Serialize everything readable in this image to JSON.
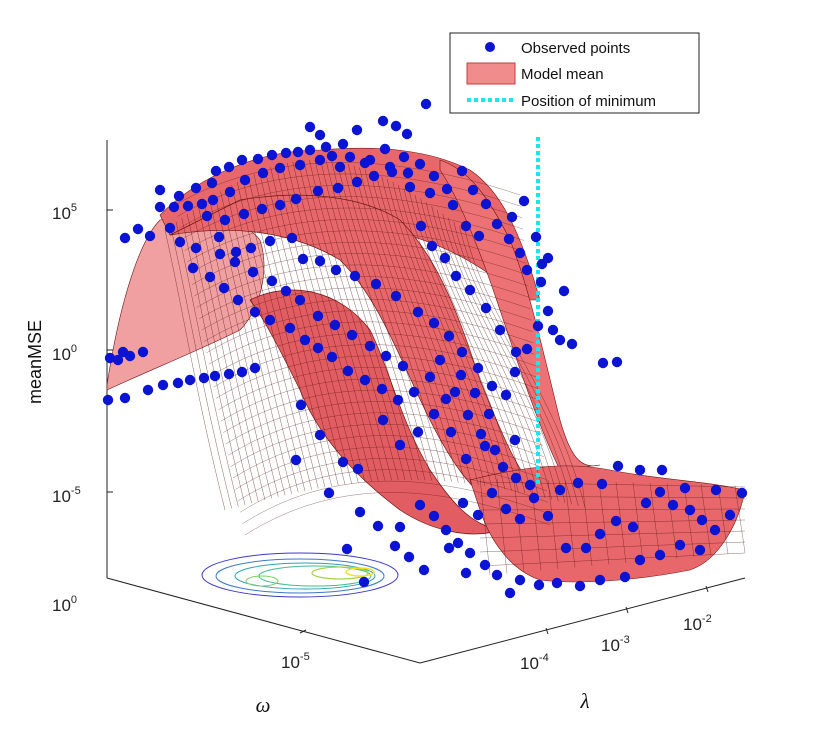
{
  "chart_data": {
    "type": "surface3d",
    "axes": {
      "z": {
        "label": "meanMSE",
        "scale": "log",
        "ticks": [
          {
            "base": "10",
            "exp": "5"
          },
          {
            "base": "10",
            "exp": "0"
          },
          {
            "base": "10",
            "exp": "-5"
          },
          {
            "base": "10",
            "exp": "0"
          }
        ]
      },
      "omega": {
        "label": "ω",
        "scale": "log",
        "ticks": [
          {
            "base": "10",
            "exp": "-5"
          }
        ]
      },
      "lambda": {
        "label": "λ",
        "scale": "log",
        "ticks": [
          {
            "base": "10",
            "exp": "-4"
          },
          {
            "base": "10",
            "exp": "-3"
          },
          {
            "base": "10",
            "exp": "-2"
          }
        ]
      }
    },
    "legend": {
      "position": "top-right",
      "entries": [
        {
          "label": "Observed points",
          "kind": "marker",
          "color": "#0a14d2"
        },
        {
          "label": "Model mean",
          "kind": "patch",
          "color": "#f08c8c"
        },
        {
          "label": "Position of minimum",
          "kind": "dotted-line",
          "color": "#19e6ee"
        }
      ]
    },
    "series": [
      {
        "name": "Observed points",
        "color": "#0a14d2"
      },
      {
        "name": "Model mean",
        "color": "#e8555a"
      },
      {
        "name": "Position of minimum",
        "color": "#19e6ee"
      }
    ],
    "minimum_position": {
      "lambda_exp": -1.8
    },
    "observed_points_note_count": 300,
    "grid": false
  }
}
